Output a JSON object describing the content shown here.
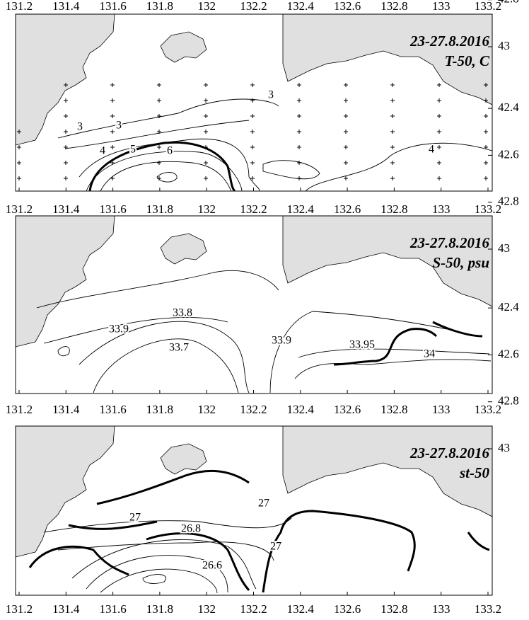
{
  "xticks": [
    131.2,
    131.4,
    131.6,
    131.8,
    132,
    132.2,
    132.4,
    132.6,
    132.8,
    133,
    133.2
  ],
  "yticks": [
    42.4,
    42.6,
    42.8,
    43
  ],
  "panels": [
    {
      "title": [
        "23-27.8.2016",
        "T-50, C"
      ],
      "contour_labels": [
        3,
        3,
        3,
        4,
        5,
        6,
        4
      ]
    },
    {
      "title": [
        "23-27.8.2016",
        "S-50, psu"
      ],
      "contour_labels": [
        33.9,
        33.8,
        33.7,
        33.9,
        33.95,
        34
      ]
    },
    {
      "title": [
        "23-27.8.2016",
        "st-50"
      ],
      "contour_labels": [
        27,
        27,
        26.8,
        26.6,
        27
      ]
    }
  ]
}
